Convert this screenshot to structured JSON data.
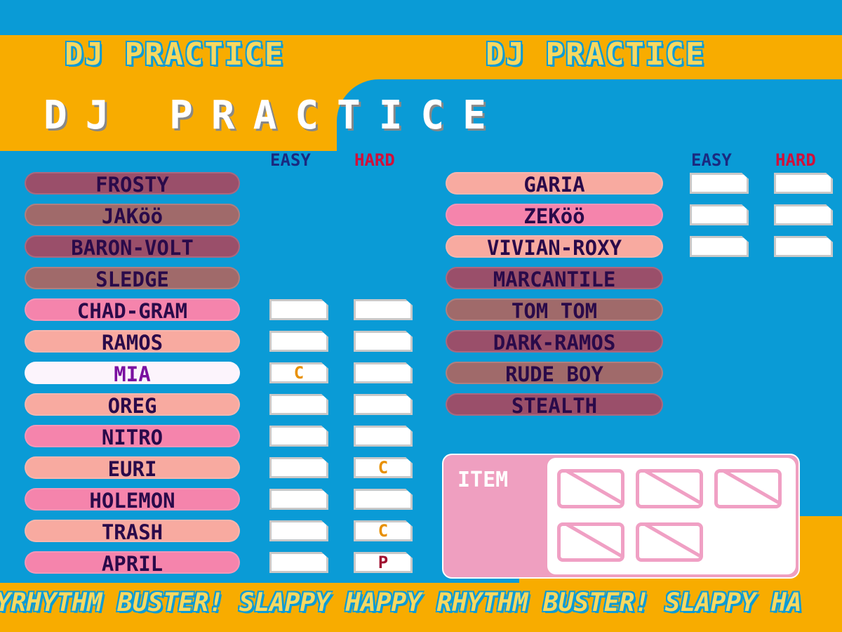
{
  "header": {
    "banner_text": "DJ PRACTICE",
    "title": "DJ PRACTICE"
  },
  "columns": {
    "easy": "EASY",
    "hard": "HARD",
    "easy_color": "#1a2a80",
    "hard_color": "#d0103a"
  },
  "left_list": [
    {
      "name": "FROSTY",
      "color": "#9a4f6a",
      "has_boxes": false,
      "easy": "",
      "hard": ""
    },
    {
      "name": "JAKöö",
      "color": "#a06a6a",
      "has_boxes": false,
      "easy": "",
      "hard": ""
    },
    {
      "name": "BARON-VOLT",
      "color": "#9a4f6a",
      "has_boxes": false,
      "easy": "",
      "hard": ""
    },
    {
      "name": "SLEDGE",
      "color": "#a06a6a",
      "has_boxes": false,
      "easy": "",
      "hard": ""
    },
    {
      "name": "CHAD-GRAM",
      "color": "#f584ac",
      "has_boxes": true,
      "easy": "",
      "hard": ""
    },
    {
      "name": "RAMOS",
      "color": "#f8aaa0",
      "has_boxes": true,
      "easy": "",
      "hard": ""
    },
    {
      "name": "MIA",
      "color": "#fcf4fc",
      "text_color": "#7a10a0",
      "has_boxes": true,
      "easy": "C",
      "hard": ""
    },
    {
      "name": "OREG",
      "color": "#f8aaa0",
      "has_boxes": true,
      "easy": "",
      "hard": ""
    },
    {
      "name": "NITRO",
      "color": "#f584ac",
      "has_boxes": true,
      "easy": "",
      "hard": ""
    },
    {
      "name": "EURI",
      "color": "#f8aaa0",
      "has_boxes": true,
      "easy": "",
      "hard": "C"
    },
    {
      "name": "HOLEMON",
      "color": "#f584ac",
      "has_boxes": true,
      "easy": "",
      "hard": ""
    },
    {
      "name": "TRASH",
      "color": "#f8aaa0",
      "has_boxes": true,
      "easy": "",
      "hard": "C"
    },
    {
      "name": "APRIL",
      "color": "#f584ac",
      "has_boxes": true,
      "easy": "",
      "hard": "P"
    }
  ],
  "right_list": [
    {
      "name": "GARIA",
      "color": "#f8aaa0",
      "has_boxes": true,
      "easy": "",
      "hard": ""
    },
    {
      "name": "ZEKöö",
      "color": "#f584ac",
      "has_boxes": true,
      "easy": "",
      "hard": ""
    },
    {
      "name": "VIVIAN-ROXY",
      "color": "#f8aaa0",
      "has_boxes": true,
      "easy": "",
      "hard": ""
    },
    {
      "name": "MARCANTILE",
      "color": "#9a4f6a",
      "has_boxes": false,
      "easy": "",
      "hard": ""
    },
    {
      "name": "TOM TOM",
      "color": "#a06a6a",
      "has_boxes": false,
      "easy": "",
      "hard": ""
    },
    {
      "name": "DARK-RAMOS",
      "color": "#9a4f6a",
      "has_boxes": false,
      "easy": "",
      "hard": ""
    },
    {
      "name": "RUDE BOY",
      "color": "#a06a6a",
      "has_boxes": false,
      "easy": "",
      "hard": ""
    },
    {
      "name": "STEALTH",
      "color": "#9a4f6a",
      "has_boxes": false,
      "easy": "",
      "hard": ""
    }
  ],
  "grade_colors": {
    "C": "#e89000",
    "P": "#a01030"
  },
  "item_panel": {
    "label": "ITEM",
    "empty_slots": 5
  },
  "footer": {
    "scroll_text": "YRHYTHM BUSTER!   SLAPPY HAPPY RHYTHM BUSTER!   SLAPPY HA"
  }
}
